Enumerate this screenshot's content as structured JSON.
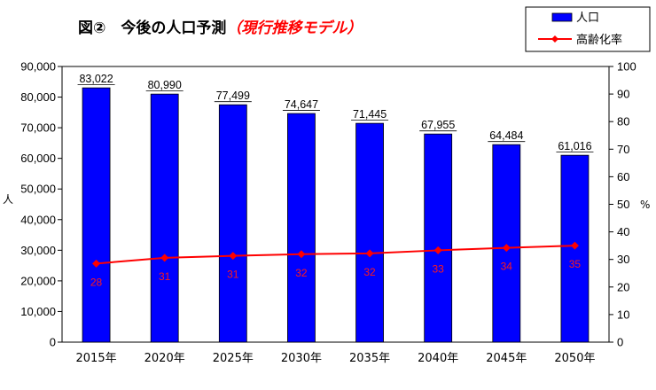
{
  "chart_data": {
    "type": "bar",
    "title": {
      "main": "図②　今後の人口予測",
      "sub": "（現行推移モデル）"
    },
    "categories": [
      "2015年",
      "2020年",
      "2025年",
      "2030年",
      "2035年",
      "2040年",
      "2045年",
      "2050年"
    ],
    "series": [
      {
        "name": "人口",
        "type": "bar",
        "axis": "left",
        "color": "#0000ff",
        "values": [
          83022,
          80990,
          77499,
          74647,
          71445,
          67955,
          64484,
          61016
        ],
        "labels": [
          "83,022",
          "80,990",
          "77,499",
          "74,647",
          "71,445",
          "67,955",
          "64,484",
          "61,016"
        ]
      },
      {
        "name": "高齢化率",
        "type": "line",
        "axis": "right",
        "color": "#ff0000",
        "values": [
          28,
          31,
          31,
          32,
          32,
          33,
          34,
          35
        ],
        "plot_values": [
          28.5,
          30.6,
          31.3,
          31.9,
          32.2,
          33.3,
          34.2,
          35.0
        ]
      }
    ],
    "y_left": {
      "label": "人",
      "ylim": [
        0,
        90000
      ],
      "ticks": [
        0,
        10000,
        20000,
        30000,
        40000,
        50000,
        60000,
        70000,
        80000,
        90000
      ],
      "tick_labels": [
        "0",
        "10,000",
        "20,000",
        "30,000",
        "40,000",
        "50,000",
        "60,000",
        "70,000",
        "80,000",
        "90,000"
      ]
    },
    "y_right": {
      "label": "%",
      "ylim": [
        0,
        100
      ],
      "ticks": [
        0,
        10,
        20,
        30,
        40,
        50,
        60,
        70,
        80,
        90,
        100
      ],
      "tick_labels": [
        "0",
        "10",
        "20",
        "30",
        "40",
        "50",
        "60",
        "70",
        "80",
        "90",
        "100"
      ]
    },
    "grid": false,
    "legend": {
      "placement": "top-right",
      "entries": [
        "人口",
        "高齢化率"
      ]
    },
    "title_colors": {
      "main": "#000000",
      "sub": "#ff0000"
    }
  }
}
